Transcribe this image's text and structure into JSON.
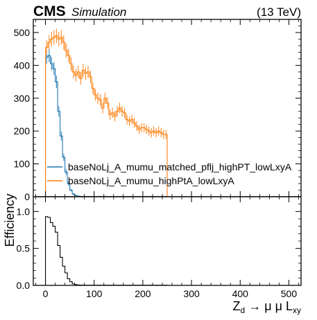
{
  "header": {
    "experiment": "CMS",
    "tag": "Simulation",
    "energy": "(13 TeV)"
  },
  "colors": {
    "matched": "#1f77b4",
    "highpt": "#ff7f0e",
    "efficiency": "#000000",
    "axes": "#000000"
  },
  "chart_data": [
    {
      "type": "histogram",
      "panel": "top",
      "xlim": [
        -25,
        525
      ],
      "ylim": [
        0,
        540
      ],
      "yticks": [
        0,
        100,
        200,
        300,
        400,
        500
      ],
      "grid": false,
      "legend_placement": "lower-right",
      "bin_width": 5,
      "bin_start": 0,
      "series": [
        {
          "name": "baseNoLj_A_mumu_matched_pflj_highPT_lowLxyA",
          "color": "#1f77b4",
          "values": [
            425,
            430,
            405,
            390,
            350,
            260,
            185,
            120,
            75,
            40,
            20,
            8,
            4,
            2,
            1,
            1,
            0.5,
            0.5,
            0.5,
            0.5,
            0.5,
            0.5,
            0.5,
            0.5,
            0.5,
            0.5,
            0.5,
            0.5,
            0.5,
            0.5,
            0.5,
            0.5,
            0.5,
            0.5,
            0.5,
            0.5,
            0.5,
            0.5,
            0.5,
            0.5,
            0.5,
            0.5,
            0.5,
            0.5,
            0.5,
            0.5,
            0.5,
            0.5,
            0.5,
            0.5
          ],
          "errors": [
            20,
            20,
            20,
            20,
            19,
            16,
            14,
            11,
            9,
            6,
            4,
            3,
            2,
            1,
            1,
            1,
            1,
            1,
            1,
            1,
            1,
            1,
            1,
            1,
            1,
            1,
            1,
            1,
            1,
            1,
            1,
            1,
            1,
            1,
            1,
            1,
            1,
            1,
            1,
            1,
            1,
            1,
            1,
            1,
            1,
            1,
            1,
            1,
            1,
            1
          ]
        },
        {
          "name": "baseNoLj_A_mumu_highPtA_lowLxyA",
          "color": "#ff7f0e",
          "values": [
            455,
            470,
            480,
            485,
            490,
            480,
            485,
            470,
            445,
            430,
            405,
            380,
            370,
            380,
            360,
            385,
            375,
            380,
            365,
            330,
            310,
            300,
            295,
            270,
            300,
            285,
            250,
            255,
            245,
            260,
            270,
            260,
            255,
            235,
            230,
            235,
            225,
            215,
            205,
            210,
            210,
            205,
            200,
            195,
            200,
            195,
            200,
            195,
            190,
            190
          ],
          "errors": [
            21,
            22,
            22,
            22,
            22,
            22,
            22,
            22,
            21,
            21,
            20,
            19,
            19,
            19,
            19,
            20,
            19,
            19,
            19,
            18,
            18,
            17,
            17,
            16,
            17,
            17,
            16,
            16,
            16,
            16,
            16,
            16,
            16,
            15,
            15,
            15,
            15,
            15,
            14,
            14,
            14,
            14,
            14,
            14,
            14,
            14,
            14,
            14,
            14,
            14
          ]
        }
      ]
    },
    {
      "type": "histogram",
      "panel": "bottom",
      "ylabel": "Efficiency",
      "xlabel": "Z_d → μ μ L_xy",
      "xlim": [
        -25,
        525
      ],
      "ylim": [
        0,
        1.2
      ],
      "xticks": [
        0,
        100,
        200,
        300,
        400,
        500
      ],
      "yticks": [
        0.0,
        0.5,
        1.0
      ],
      "grid": false,
      "bin_width": 5,
      "bin_start": 0,
      "series": [
        {
          "color": "#000000",
          "values": [
            0.93,
            0.92,
            0.85,
            0.8,
            0.72,
            0.54,
            0.38,
            0.26,
            0.17,
            0.09,
            0.05,
            0.02,
            0.01,
            0.005,
            0.003,
            0.003,
            0.002,
            0.002,
            0.002,
            0.002,
            0.002,
            0.002,
            0.002,
            0.002,
            0.002,
            0.002,
            0.002,
            0.002,
            0.002,
            0.002,
            0.002,
            0.002,
            0.002,
            0.002,
            0.002,
            0.002,
            0.002,
            0.002,
            0.002,
            0.002,
            0.002,
            0.002,
            0.002,
            0.002,
            0.002,
            0.002,
            0.002,
            0.002,
            0.002,
            0.002
          ]
        }
      ]
    }
  ]
}
